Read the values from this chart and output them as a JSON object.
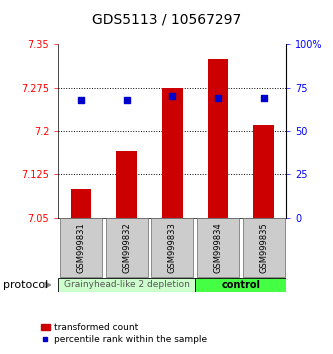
{
  "title": "GDS5113 / 10567297",
  "samples": [
    "GSM999831",
    "GSM999832",
    "GSM999833",
    "GSM999834",
    "GSM999835"
  ],
  "bar_values": [
    7.1,
    7.165,
    7.275,
    7.325,
    7.21
  ],
  "percentile_values": [
    68,
    68,
    70,
    69,
    69
  ],
  "y_min": 7.05,
  "y_max": 7.35,
  "y_ticks": [
    7.05,
    7.125,
    7.2,
    7.275,
    7.35
  ],
  "y_tick_labels": [
    "7.05",
    "7.125",
    "7.2",
    "7.275",
    "7.35"
  ],
  "y2_ticks": [
    0,
    25,
    50,
    75,
    100
  ],
  "y2_tick_labels": [
    "0",
    "25",
    "50",
    "75",
    "100%"
  ],
  "bar_color": "#cc0000",
  "dot_color": "#0000cc",
  "bar_width": 0.45,
  "group1_label": "Grainyhead-like 2 depletion",
  "group2_label": "control",
  "group1_color": "#ccffcc",
  "group2_color": "#44ff44",
  "group1_samples": [
    0,
    1,
    2
  ],
  "group2_samples": [
    3,
    4
  ],
  "protocol_label": "protocol",
  "legend_bar_label": "transformed count",
  "legend_dot_label": "percentile rank within the sample",
  "title_fontsize": 10,
  "tick_fontsize": 7,
  "sample_fontsize": 6,
  "group_fontsize": 6.5,
  "legend_fontsize": 6.5,
  "protocol_fontsize": 8
}
